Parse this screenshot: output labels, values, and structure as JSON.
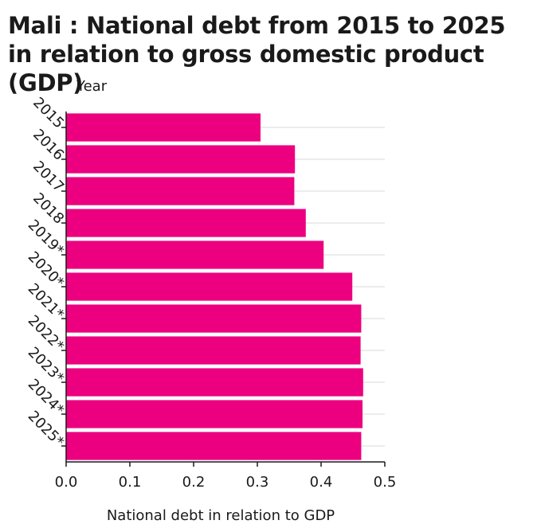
{
  "chart_data": {
    "type": "bar",
    "orientation": "horizontal",
    "title": "Mali : National debt from 2015 to 2025 in relation to gross domestic product (GDP)",
    "xlabel": "National debt in relation to GDP",
    "ylabel": "Year",
    "categories": [
      "2015",
      "2016",
      "2017",
      "2018",
      "2019*",
      "2020*",
      "2021*",
      "2022*",
      "2023*",
      "2024*",
      "2025*"
    ],
    "values": [
      0.305,
      0.359,
      0.358,
      0.376,
      0.404,
      0.449,
      0.463,
      0.462,
      0.466,
      0.465,
      0.463
    ],
    "xlim": [
      0,
      0.5
    ],
    "xticks": [
      "0.0",
      "0.1",
      "0.2",
      "0.3",
      "0.4",
      "0.5"
    ],
    "grid": "horizontal",
    "bar_color": "#ed0080",
    "grid_color": "#d9d9d9",
    "axis_color": "#1a1a1a"
  }
}
